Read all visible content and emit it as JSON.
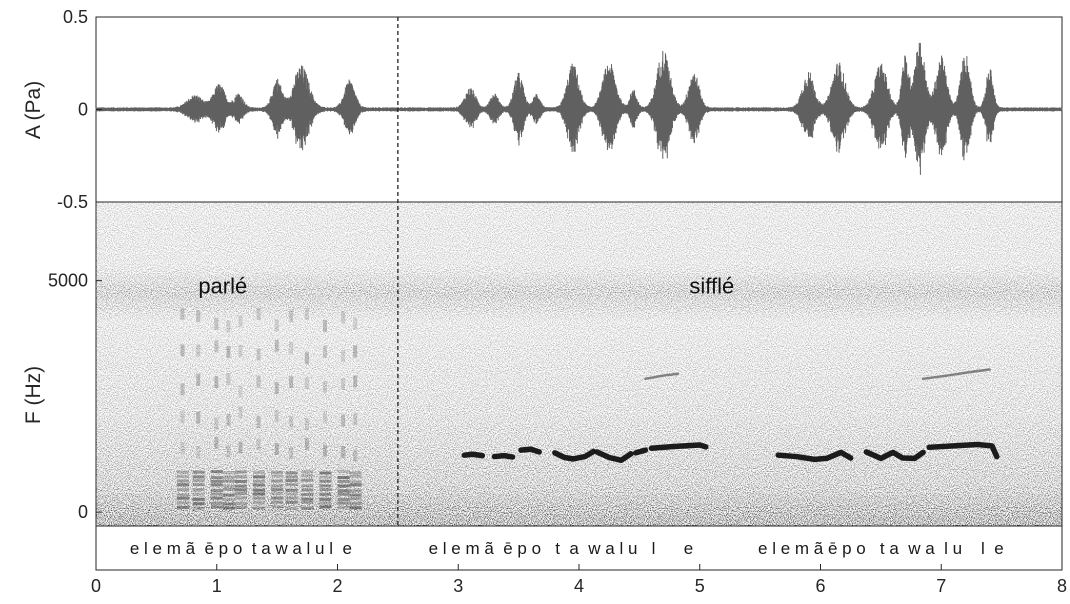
{
  "chart_data": [
    {
      "type": "line",
      "panel": "waveform",
      "ylabel": "A (Pa)",
      "xlim": [
        0,
        8
      ],
      "ylim": [
        -0.5,
        0.5
      ],
      "yticks": [
        {
          "value": 0.5,
          "label": "0.5"
        },
        {
          "value": 0,
          "label": "0"
        },
        {
          "value": -0.5,
          "label": "-0.5"
        }
      ],
      "line_color": "#606060",
      "noise_floor": 0.012,
      "bursts": [
        {
          "center": 0.82,
          "width": 0.13,
          "amp": 0.07
        },
        {
          "center": 1.02,
          "width": 0.1,
          "amp": 0.13
        },
        {
          "center": 1.18,
          "width": 0.08,
          "amp": 0.08
        },
        {
          "center": 1.5,
          "width": 0.08,
          "amp": 0.16
        },
        {
          "center": 1.7,
          "width": 0.13,
          "amp": 0.23
        },
        {
          "center": 2.1,
          "width": 0.09,
          "amp": 0.15
        },
        {
          "center": 3.1,
          "width": 0.09,
          "amp": 0.11
        },
        {
          "center": 3.3,
          "width": 0.07,
          "amp": 0.08
        },
        {
          "center": 3.5,
          "width": 0.08,
          "amp": 0.19
        },
        {
          "center": 3.65,
          "width": 0.06,
          "amp": 0.08
        },
        {
          "center": 3.95,
          "width": 0.1,
          "amp": 0.24
        },
        {
          "center": 4.25,
          "width": 0.11,
          "amp": 0.25
        },
        {
          "center": 4.45,
          "width": 0.06,
          "amp": 0.1
        },
        {
          "center": 4.7,
          "width": 0.11,
          "amp": 0.32
        },
        {
          "center": 4.95,
          "width": 0.09,
          "amp": 0.2
        },
        {
          "center": 5.9,
          "width": 0.1,
          "amp": 0.2
        },
        {
          "center": 6.15,
          "width": 0.11,
          "amp": 0.25
        },
        {
          "center": 6.5,
          "width": 0.11,
          "amp": 0.24
        },
        {
          "center": 6.7,
          "width": 0.06,
          "amp": 0.28
        },
        {
          "center": 6.82,
          "width": 0.09,
          "amp": 0.37
        },
        {
          "center": 7.0,
          "width": 0.09,
          "amp": 0.28
        },
        {
          "center": 7.2,
          "width": 0.08,
          "amp": 0.3
        },
        {
          "center": 7.4,
          "width": 0.06,
          "amp": 0.22
        }
      ]
    },
    {
      "type": "heatmap",
      "panel": "spectrogram",
      "ylabel": "F (Hz)",
      "xlim": [
        0,
        8
      ],
      "ylim": [
        -300,
        6700
      ],
      "yticks": [
        {
          "value": 5000,
          "label": "5000"
        },
        {
          "value": 0,
          "label": "0"
        }
      ],
      "xticks": [
        0,
        1,
        2,
        3,
        4,
        5,
        6,
        7,
        8
      ],
      "divider_x": 2.5,
      "annotations": [
        {
          "text": "parlé",
          "x": 1.05,
          "y": 4900
        },
        {
          "text": "sifflé",
          "x": 5.1,
          "y": 4900
        }
      ],
      "whistle_tracks": [
        {
          "t": [
            3.05,
            3.12,
            3.2
          ],
          "f": [
            1230,
            1250,
            1220
          ]
        },
        {
          "t": [
            3.3,
            3.38,
            3.45
          ],
          "f": [
            1200,
            1220,
            1190
          ]
        },
        {
          "t": [
            3.52,
            3.6,
            3.67
          ],
          "f": [
            1340,
            1360,
            1300
          ]
        },
        {
          "t": [
            3.8,
            3.88,
            3.95,
            4.05,
            4.12
          ],
          "f": [
            1280,
            1180,
            1150,
            1200,
            1310
          ]
        },
        {
          "t": [
            4.15,
            4.25,
            4.35,
            4.43
          ],
          "f": [
            1300,
            1180,
            1120,
            1260
          ]
        },
        {
          "t": [
            4.47,
            4.55
          ],
          "f": [
            1280,
            1340
          ]
        },
        {
          "t": [
            4.6,
            4.8,
            5.0,
            5.05
          ],
          "f": [
            1380,
            1420,
            1450,
            1410
          ]
        },
        {
          "t": [
            5.65,
            5.8,
            5.95,
            6.05,
            6.17,
            6.25
          ],
          "f": [
            1230,
            1200,
            1140,
            1160,
            1290,
            1170
          ]
        },
        {
          "t": [
            6.38,
            6.5,
            6.6,
            6.68,
            6.78,
            6.85
          ],
          "f": [
            1300,
            1160,
            1290,
            1170,
            1160,
            1290
          ]
        },
        {
          "t": [
            6.9,
            7.1,
            7.3,
            7.42,
            7.46
          ],
          "f": [
            1400,
            1430,
            1460,
            1430,
            1200
          ]
        },
        {
          "t": [
            4.55,
            4.7,
            4.82
          ],
          "f": [
            2880,
            2950,
            2990
          ],
          "faint": true
        },
        {
          "t": [
            6.85,
            7.05,
            7.25,
            7.4
          ],
          "f": [
            2880,
            2950,
            3030,
            3080
          ],
          "faint": true
        }
      ],
      "segmentation_labels": [
        {
          "text": "e l e m ã  ē p o  t a w a l u l  e",
          "x": 1.2
        },
        {
          "text": "e l e m ã  ē p o   t  a  w a l u   l      e",
          "x": 3.85
        },
        {
          "text": "e l e m ã ē p o   t a  w a  l u    l  e",
          "x": 6.5
        }
      ]
    }
  ]
}
